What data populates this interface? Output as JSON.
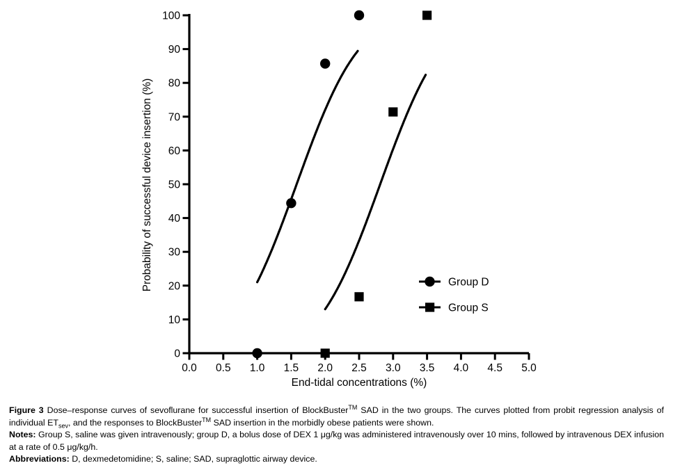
{
  "chart_data": {
    "type": "scatter",
    "title": "",
    "xlabel": "End-tidal concentrations (%)",
    "ylabel": "Probability of successful device insertion (%)",
    "xlim": [
      0.0,
      5.0
    ],
    "ylim": [
      0,
      100
    ],
    "grid": false,
    "x_ticks": [
      {
        "value": 0.0,
        "label": "0.0"
      },
      {
        "value": 0.5,
        "label": "0.5"
      },
      {
        "value": 1.0,
        "label": "1.0"
      },
      {
        "value": 1.5,
        "label": "1.5"
      },
      {
        "value": 2.0,
        "label": "2.0"
      },
      {
        "value": 2.5,
        "label": "2.5"
      },
      {
        "value": 3.0,
        "label": "3.0"
      },
      {
        "value": 3.5,
        "label": "3.5"
      },
      {
        "value": 4.0,
        "label": "4.0"
      },
      {
        "value": 4.5,
        "label": "4.5"
      },
      {
        "value": 5.0,
        "label": "5.0"
      }
    ],
    "y_ticks": [
      {
        "value": 0,
        "label": "0"
      },
      {
        "value": 10,
        "label": "10"
      },
      {
        "value": 20,
        "label": "20"
      },
      {
        "value": 30,
        "label": "30"
      },
      {
        "value": 40,
        "label": "40"
      },
      {
        "value": 50,
        "label": "50"
      },
      {
        "value": 60,
        "label": "60"
      },
      {
        "value": 70,
        "label": "70"
      },
      {
        "value": 80,
        "label": "80"
      },
      {
        "value": 90,
        "label": "90"
      },
      {
        "value": 100,
        "label": "100"
      }
    ],
    "series": [
      {
        "name": "Group D",
        "marker": "circle",
        "color": "#000000",
        "points": [
          [
            1.0,
            0
          ],
          [
            1.5,
            44.4
          ],
          [
            2.0,
            85.7
          ],
          [
            2.5,
            100
          ]
        ]
      },
      {
        "name": "Group S",
        "marker": "square",
        "color": "#000000",
        "points": [
          [
            2.0,
            0
          ],
          [
            2.5,
            16.7
          ],
          [
            3.0,
            71.4
          ],
          [
            3.5,
            100
          ]
        ]
      }
    ],
    "curves": [
      {
        "series": "Group D",
        "model": "probit",
        "mu": 1.58,
        "sigma": 0.72,
        "x_start": 1.0,
        "x_end": 2.48,
        "y_start_pct": 21,
        "y_end_pct": 89.5
      },
      {
        "series": "Group S",
        "model": "probit",
        "mu": 2.81,
        "sigma": 0.72,
        "x_start": 2.0,
        "x_end": 3.49,
        "y_start_pct": 13,
        "y_end_pct": 82.7
      }
    ],
    "legend": {
      "position": "right-middle",
      "entries": [
        "Group D",
        "Group S"
      ]
    },
    "colors": {
      "foreground": "#000000",
      "background": "#ffffff"
    }
  },
  "figure": {
    "caption_paragraphs": [
      {
        "name": "figure-caption",
        "segments": [
          {
            "style": "bold",
            "text": "Figure 3 "
          },
          {
            "style": "normal",
            "text": "Dose–response curves of sevoflurane for successful insertion of BlockBuster"
          },
          {
            "style": "sup",
            "text": "TM"
          },
          {
            "style": "normal",
            "text": " SAD in the two groups. The curves plotted from probit regression analysis of individual ET"
          },
          {
            "style": "sub",
            "text": "sev"
          },
          {
            "style": "normal",
            "text": ", and the responses to BlockBuster"
          },
          {
            "style": "sup",
            "text": "TM"
          },
          {
            "style": "normal",
            "text": " SAD insertion in the morbidly obese patients were shown."
          }
        ]
      },
      {
        "name": "notes",
        "segments": [
          {
            "style": "bold",
            "text": "Notes: "
          },
          {
            "style": "normal",
            "text": "Group S, saline was given intravenously; group D, a bolus dose of DEX 1 μg/kg was administered intravenously over 10 mins, followed by intravenous DEX infusion at a rate of 0.5 μg/kg/h."
          }
        ]
      },
      {
        "name": "abbreviations",
        "segments": [
          {
            "style": "bold",
            "text": "Abbreviations: "
          },
          {
            "style": "normal",
            "text": "D, dexmedetomidine; S, saline; SAD, supraglottic airway device."
          }
        ]
      }
    ]
  }
}
